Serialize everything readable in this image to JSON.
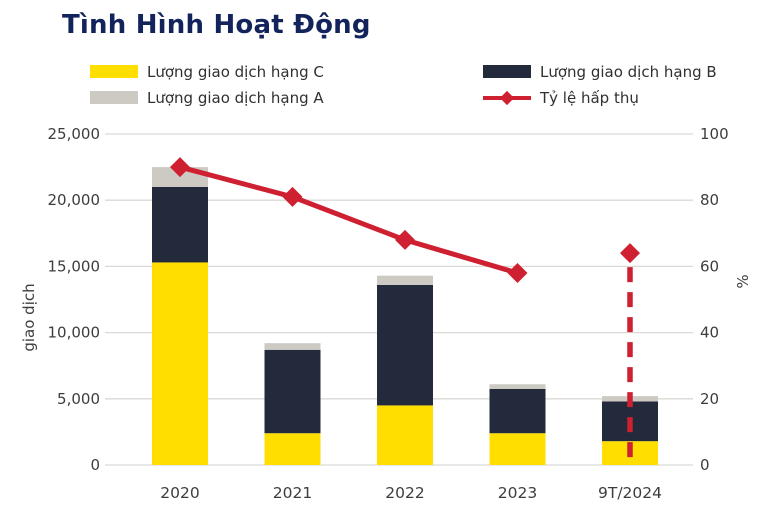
{
  "title": "Tình Hình Hoạt Động",
  "colors": {
    "title": "#13235B",
    "yellow": "#FFDE00",
    "navy": "#232A3B",
    "gray": "#CDC9C3",
    "red": "#CE2030",
    "grid": "#DBD9D6",
    "text": "#3D3D3D"
  },
  "legend": {
    "item_c": "Lượng giao dịch hạng C",
    "item_a": "Lượng giao dịch hạng A",
    "item_b": "Lượng giao dịch hạng B",
    "item_line": "Tỷ lệ hấp thụ"
  },
  "chart_data": {
    "type": "bar",
    "subtype": "stacked-bars-with-line",
    "categories": [
      "2020",
      "2021",
      "2022",
      "2023",
      "9T/2024"
    ],
    "series": [
      {
        "name": "Lượng giao dịch hạng C",
        "kind": "bar",
        "color": "#FFDE00",
        "values": [
          15300,
          2400,
          4500,
          2400,
          1800
        ]
      },
      {
        "name": "Lượng giao dịch hạng B",
        "kind": "bar",
        "color": "#232A3B",
        "values": [
          5700,
          6300,
          9100,
          3350,
          3000
        ]
      },
      {
        "name": "Lượng giao dịch hạng A",
        "kind": "bar",
        "color": "#CDC9C3",
        "values": [
          1500,
          500,
          700,
          350,
          400
        ]
      },
      {
        "name": "Tỷ lệ hấp thụ",
        "kind": "line",
        "color": "#CE2030",
        "values": [
          90,
          81,
          68,
          58,
          64
        ],
        "last_point_isolated": true
      }
    ],
    "left_axis": {
      "label": "giao dịch",
      "min": 0,
      "max": 25000,
      "tick_values": [
        0,
        5000,
        10000,
        15000,
        20000,
        25000
      ],
      "tick_labels": [
        "0",
        "5,000",
        "10,000",
        "15,000",
        "20,000",
        "25,000"
      ]
    },
    "right_axis": {
      "label": "%",
      "min": 0,
      "max": 100,
      "tick_values": [
        0,
        20,
        40,
        60,
        80,
        100
      ],
      "tick_labels": [
        "0",
        "20",
        "40",
        "60",
        "80",
        "100"
      ]
    },
    "grid": true,
    "legend_position": "top"
  }
}
